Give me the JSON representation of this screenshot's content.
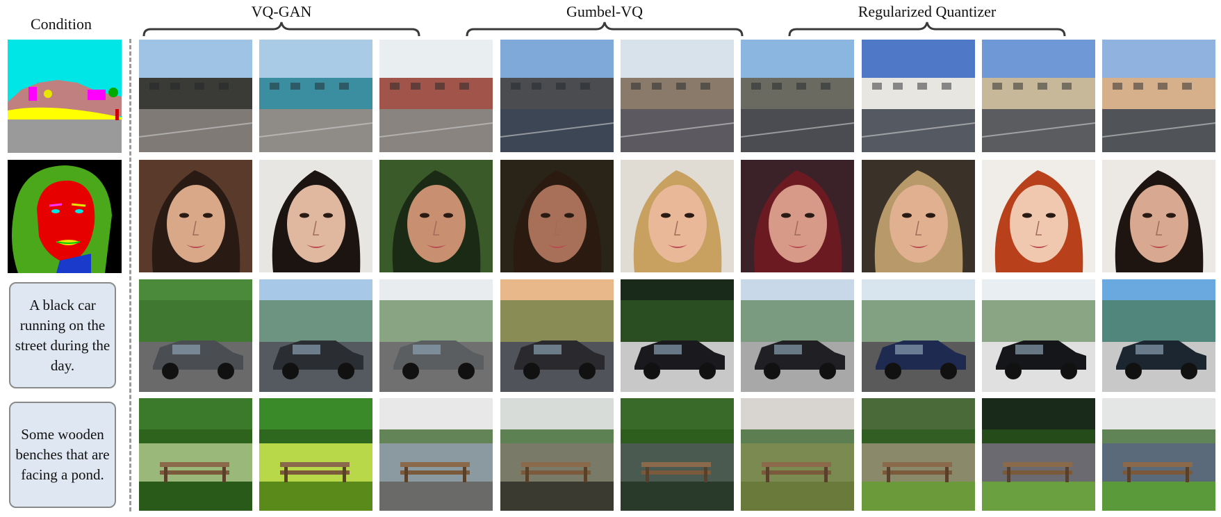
{
  "header": {
    "condition_label": "Condition",
    "groups": [
      {
        "label": "VQ-GAN"
      },
      {
        "label": "Gumbel-VQ"
      },
      {
        "label": "Regularized Quantizer"
      }
    ]
  },
  "rows": [
    {
      "condition_type": "semantic-map",
      "condition_text": "",
      "scene": "street buildings"
    },
    {
      "condition_type": "face-parsing-map",
      "condition_text": "",
      "scene": "portrait faces"
    },
    {
      "condition_type": "text",
      "condition_text": "A black car running on the street during the day.",
      "scene": "black car on street"
    },
    {
      "condition_type": "text",
      "condition_text": "Some wooden benches that are facing a pond.",
      "scene": "wooden benches and pond"
    }
  ],
  "colors": {
    "brace": "#3a3a3a",
    "text_box_fill": "#dfe8f2",
    "text_box_border": "#8a8a8a",
    "divider": "#9a9a9a"
  }
}
